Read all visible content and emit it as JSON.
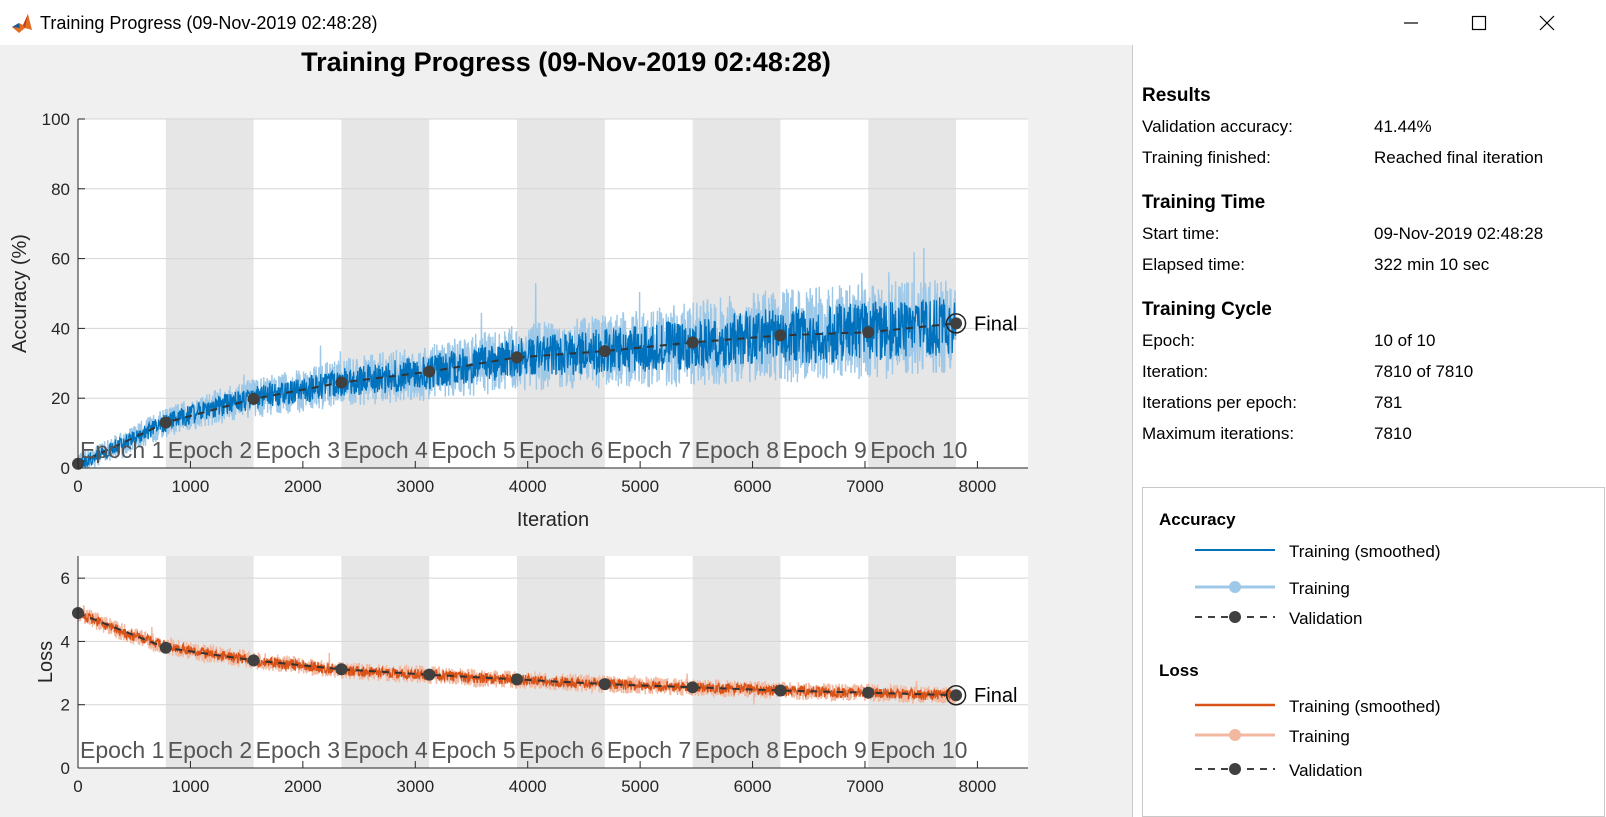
{
  "window": {
    "title": "Training Progress (09-Nov-2019 02:48:28)",
    "controls": [
      "minimize",
      "maximize",
      "close"
    ]
  },
  "main_title": "Training Progress (09-Nov-2019 02:48:28)",
  "results": {
    "title": "Results",
    "rows": [
      {
        "label": "Validation accuracy:",
        "value": "41.44%"
      },
      {
        "label": "Training finished:",
        "value": "Reached final iteration"
      }
    ]
  },
  "training_time": {
    "title": "Training Time",
    "rows": [
      {
        "label": "Start time:",
        "value": "09-Nov-2019 02:48:28"
      },
      {
        "label": "Elapsed time:",
        "value": "322 min 10 sec"
      }
    ]
  },
  "training_cycle": {
    "title": "Training Cycle",
    "rows": [
      {
        "label": "Epoch:",
        "value": "10 of 10"
      },
      {
        "label": "Iteration:",
        "value": "7810 of 7810"
      },
      {
        "label": "Iterations per epoch:",
        "value": "781"
      },
      {
        "label": "Maximum iterations:",
        "value": "7810"
      }
    ]
  },
  "legend": {
    "accuracy_title": "Accuracy",
    "loss_title": "Loss",
    "items": {
      "smoothed": "Training (smoothed)",
      "training": "Training",
      "validation": "Validation"
    }
  },
  "colors": {
    "accuracy": "#0072bd",
    "accuracy_light": "#9dc8e8",
    "loss": "#d95319",
    "loss_light": "#f2b9a0",
    "validation": "#404040",
    "epoch_band": "#e6e6e6"
  },
  "chart_data": [
    {
      "type": "line",
      "xlabel": "Iteration",
      "ylabel": "Accuracy (%)",
      "xlim": [
        0,
        8450
      ],
      "ylim": [
        0,
        100
      ],
      "xticks": [
        0,
        1000,
        2000,
        3000,
        4000,
        5000,
        6000,
        7000,
        8000
      ],
      "yticks": [
        0,
        20,
        40,
        60,
        80,
        100
      ],
      "epoch_labels": [
        "Epoch 1",
        "Epoch 2",
        "Epoch 3",
        "Epoch 4",
        "Epoch 5",
        "Epoch 6",
        "Epoch 7",
        "Epoch 8",
        "Epoch 9",
        "Epoch 10"
      ],
      "epoch_boundaries": [
        0,
        781,
        1562,
        2343,
        3124,
        3905,
        4686,
        5467,
        6248,
        7029,
        7810
      ],
      "final_label": "Final",
      "series": [
        {
          "name": "Training (smoothed)",
          "x": [
            0,
            390,
            781,
            1171,
            1562,
            1952,
            2343,
            2733,
            3124,
            3514,
            3905,
            4295,
            4686,
            5076,
            5467,
            5857,
            6248,
            6638,
            7029,
            7419,
            7810
          ],
          "y": [
            1,
            7,
            13,
            17,
            20,
            22,
            24.5,
            26,
            27.5,
            29.5,
            31.5,
            32.5,
            33.5,
            34.5,
            35.5,
            37,
            38,
            38.5,
            39,
            40,
            41
          ]
        },
        {
          "name": "Validation",
          "x": [
            0,
            781,
            1562,
            2343,
            3124,
            3905,
            4686,
            5467,
            6248,
            7029,
            7810
          ],
          "y": [
            1.2,
            13,
            19.8,
            24.5,
            27.6,
            31.7,
            33.5,
            36.0,
            38.0,
            38.9,
            41.44
          ]
        }
      ]
    },
    {
      "type": "line",
      "xlabel": "",
      "ylabel": "Loss",
      "xlim": [
        0,
        8450
      ],
      "ylim": [
        0,
        6.7
      ],
      "xticks": [
        0,
        1000,
        2000,
        3000,
        4000,
        5000,
        6000,
        7000,
        8000
      ],
      "yticks": [
        0,
        2,
        4,
        6
      ],
      "epoch_labels": [
        "Epoch 1",
        "Epoch 2",
        "Epoch 3",
        "Epoch 4",
        "Epoch 5",
        "Epoch 6",
        "Epoch 7",
        "Epoch 8",
        "Epoch 9",
        "Epoch 10"
      ],
      "epoch_boundaries": [
        0,
        781,
        1562,
        2343,
        3124,
        3905,
        4686,
        5467,
        6248,
        7029,
        7810
      ],
      "final_label": "Final",
      "series": [
        {
          "name": "Training (smoothed)",
          "x": [
            0,
            390,
            781,
            1171,
            1562,
            1952,
            2343,
            2733,
            3124,
            3514,
            3905,
            4295,
            4686,
            5076,
            5467,
            5857,
            6248,
            6638,
            7029,
            7419,
            7810
          ],
          "y": [
            4.9,
            4.3,
            3.85,
            3.6,
            3.4,
            3.25,
            3.1,
            3.0,
            2.95,
            2.85,
            2.8,
            2.72,
            2.65,
            2.6,
            2.55,
            2.5,
            2.45,
            2.4,
            2.38,
            2.33,
            2.3
          ]
        },
        {
          "name": "Validation",
          "x": [
            0,
            781,
            1562,
            2343,
            3124,
            3905,
            4686,
            5467,
            6248,
            7029,
            7810
          ],
          "y": [
            4.9,
            3.8,
            3.4,
            3.12,
            2.95,
            2.8,
            2.65,
            2.55,
            2.45,
            2.38,
            2.3
          ]
        }
      ]
    }
  ]
}
